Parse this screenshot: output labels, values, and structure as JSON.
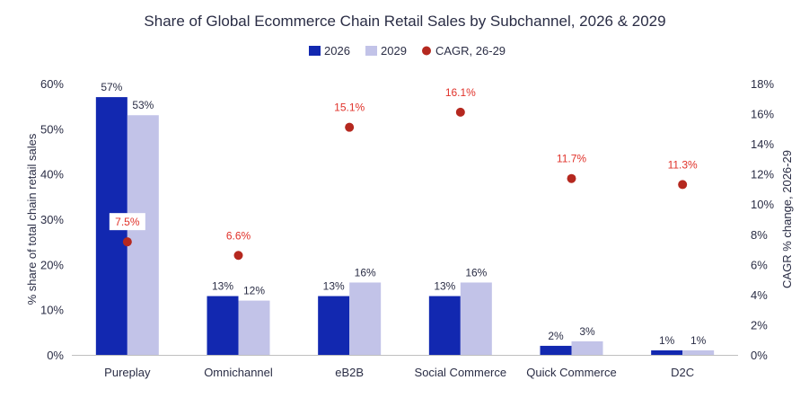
{
  "chart_data": {
    "type": "bar",
    "title": "Share of Global Ecommerce Chain Retail Sales by Subchannel, 2026 & 2029",
    "categories": [
      "Pureplay",
      "Omnichannel",
      "eB2B",
      "Social Commerce",
      "Quick Commerce",
      "D2C"
    ],
    "series": [
      {
        "name": "2026",
        "values": [
          57,
          13,
          13,
          13,
          2,
          1
        ],
        "labels": [
          "57%",
          "13%",
          "13%",
          "13%",
          "2%",
          "1%"
        ],
        "color": "#1228b0"
      },
      {
        "name": "2029",
        "values": [
          53,
          12,
          16,
          16,
          3,
          1
        ],
        "labels": [
          "53%",
          "12%",
          "16%",
          "16%",
          "3%",
          "1%"
        ],
        "color": "#c2c3e8"
      }
    ],
    "cagr": {
      "name": "CAGR, 26-29",
      "values": [
        7.5,
        6.6,
        15.1,
        16.1,
        11.7,
        11.3
      ],
      "labels": [
        "7.5%",
        "6.6%",
        "15.1%",
        "16.1%",
        "11.7%",
        "11.3%"
      ],
      "color": "#b5281f",
      "label_color": "#e0322a"
    },
    "ylabel": "% share of total chain retail sales",
    "y2label": "CAGR % change, 2026-29",
    "ylim": [
      0,
      60
    ],
    "y2lim": [
      0,
      18
    ],
    "yticks": [
      "0%",
      "10%",
      "20%",
      "30%",
      "40%",
      "50%",
      "60%"
    ],
    "y2ticks": [
      "0%",
      "2%",
      "4%",
      "6%",
      "8%",
      "10%",
      "12%",
      "14%",
      "16%",
      "18%"
    ],
    "legend": [
      "2026",
      "2029",
      "CAGR, 26-29"
    ],
    "legend_position": "top-center",
    "text_color": "#2a2d45"
  }
}
